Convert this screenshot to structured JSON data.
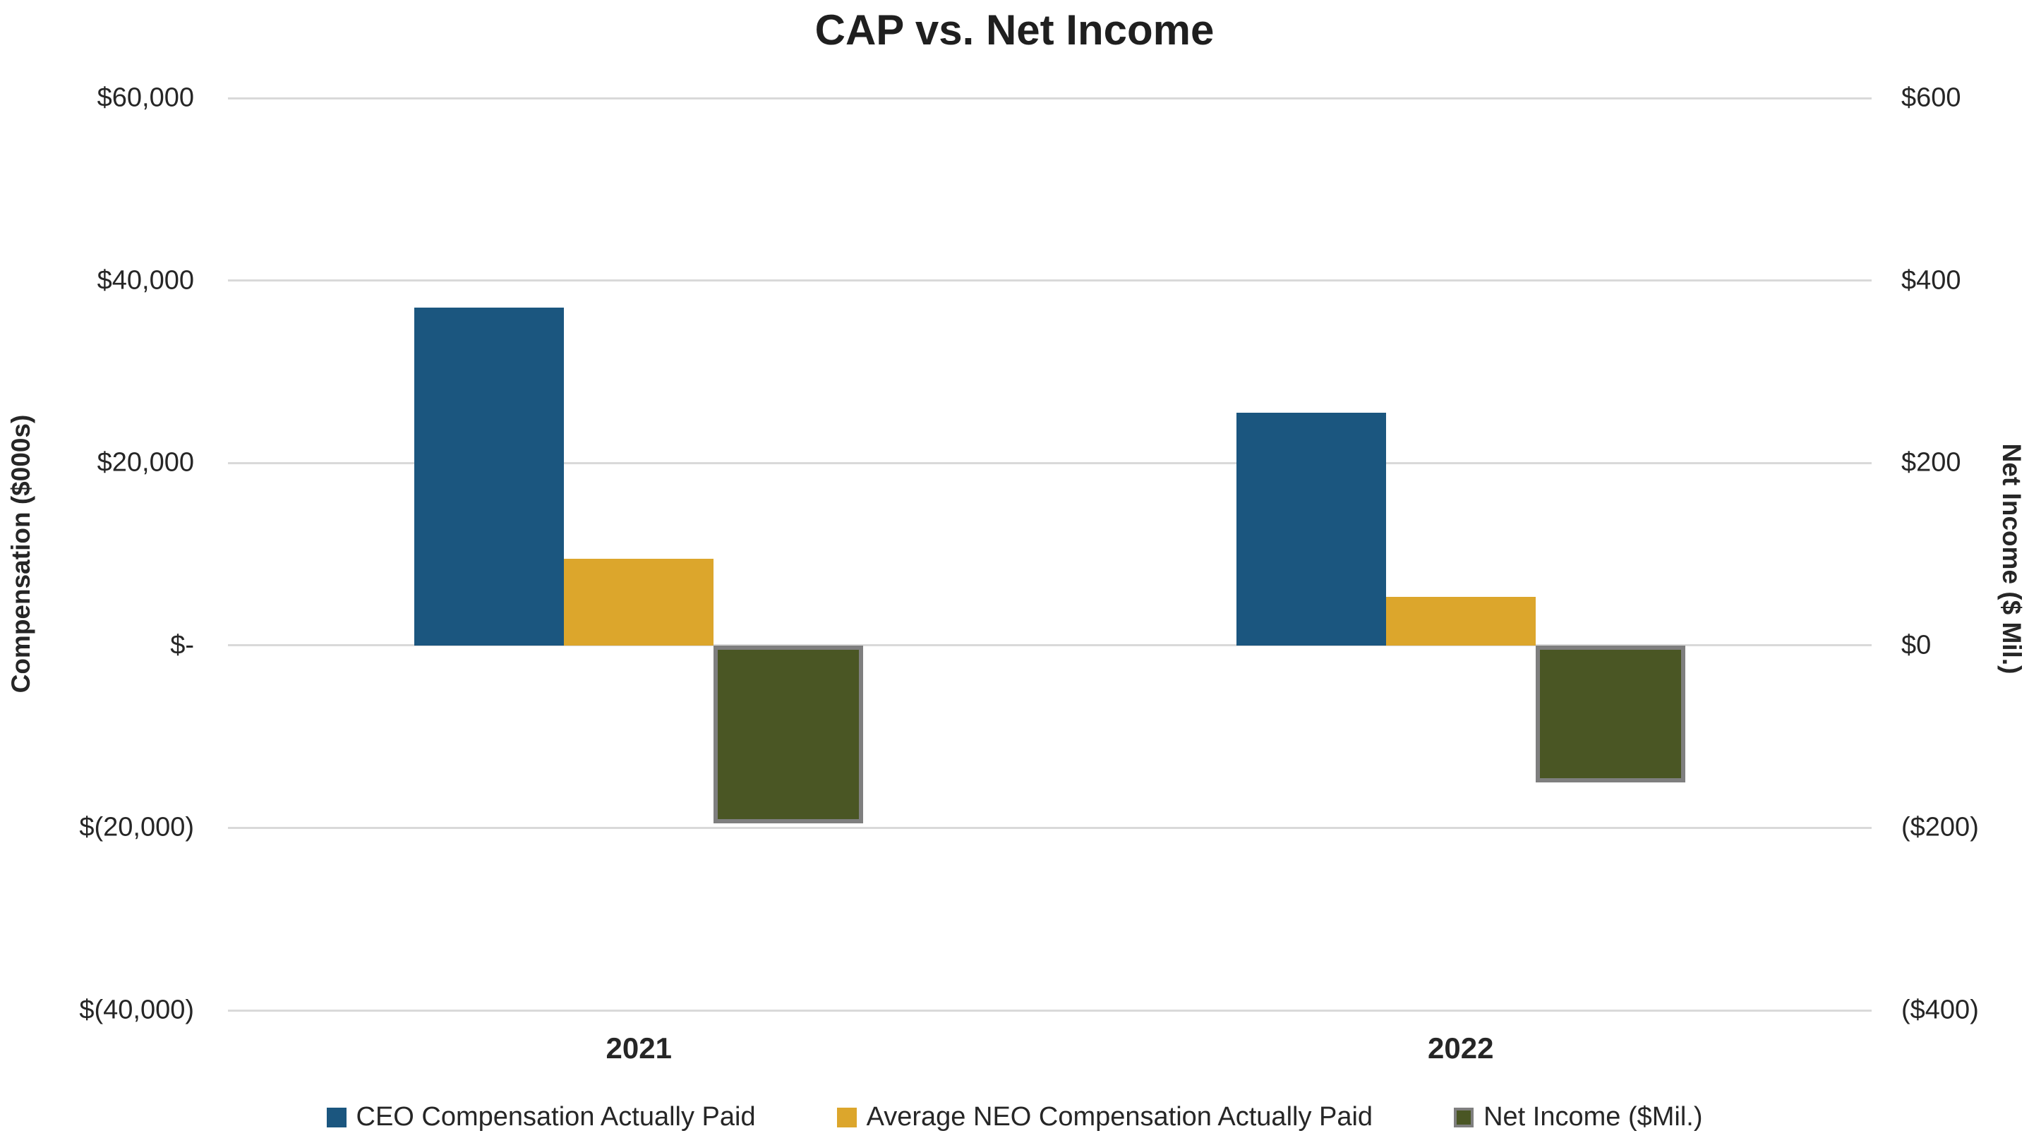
{
  "chart_data": {
    "type": "bar",
    "title": "CAP vs. Net Income",
    "categories": [
      "2021",
      "2022"
    ],
    "series": [
      {
        "name": "CEO Compensation Actually Paid",
        "axis": "left",
        "color": "#1B567F",
        "values": [
          37000,
          25500
        ]
      },
      {
        "name": "Average NEO Compensation Actually Paid",
        "axis": "left",
        "color": "#DCA62C",
        "values": [
          9500,
          5300
        ]
      },
      {
        "name": "Net Income ($Mil.)",
        "axis": "right",
        "color": "#4A5624",
        "border_color": "#7F7F7F",
        "values": [
          -195,
          -150
        ]
      }
    ],
    "left_axis": {
      "label": "Compensation ($000s)",
      "min": -40000,
      "max": 60000,
      "ticks": [
        {
          "value": 60000,
          "label": "$60,000"
        },
        {
          "value": 40000,
          "label": "$40,000"
        },
        {
          "value": 20000,
          "label": "$20,000"
        },
        {
          "value": 0,
          "label": "$-"
        },
        {
          "value": -20000,
          "label": "$(20,000)"
        },
        {
          "value": -40000,
          "label": "$(40,000)"
        }
      ]
    },
    "right_axis": {
      "label": "Net Income ($ Mil.)",
      "min": -400,
      "max": 600,
      "ticks": [
        {
          "value": 600,
          "label": "$600"
        },
        {
          "value": 400,
          "label": "$400"
        },
        {
          "value": 200,
          "label": "$200"
        },
        {
          "value": 0,
          "label": "$0"
        },
        {
          "value": -200,
          "label": "($200)"
        },
        {
          "value": -400,
          "label": "($400)"
        }
      ]
    },
    "legend_position": "bottom",
    "grid": true,
    "gridline_color": "#D9D9D9",
    "background": "#FFFFFF",
    "text_color": "#262626"
  }
}
